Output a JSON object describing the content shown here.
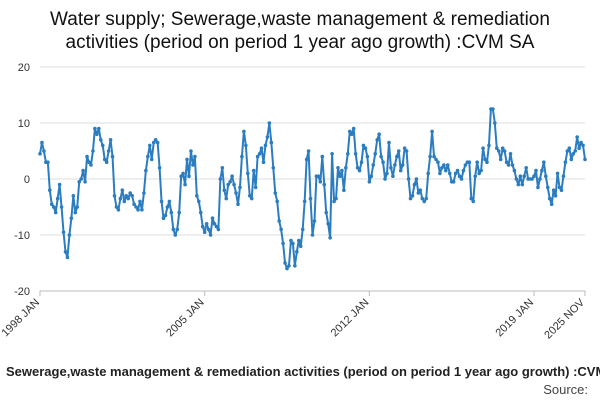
{
  "chart_data": {
    "type": "line",
    "title_lines": [
      "Water supply; Sewerage,waste management & remediation",
      "activities (period on period 1 year ago growth) :CVM SA"
    ],
    "ylim": [
      -20,
      20
    ],
    "yticks": [
      -20,
      -10,
      0,
      10,
      20
    ],
    "grid": true,
    "xticks": [
      "1998 JAN",
      "2005 JAN",
      "2012 JAN",
      "2019 JAN",
      "2025 NOV"
    ],
    "series": [
      {
        "name": "Sewerage,waste management & remediation activities (period on period 1 year ago growth) :CVM SA",
        "color": "#2b7dc0",
        "start": "1998 JAN",
        "end": "2025 NOV",
        "frequency": "monthly",
        "values": [
          4.5,
          6.5,
          5.0,
          3.0,
          3.0,
          -2.0,
          -4.5,
          -5.0,
          -6.0,
          -3.5,
          -1.0,
          -5.0,
          -9.5,
          -13.0,
          -14.0,
          -10.0,
          -7.0,
          -3.0,
          -6.0,
          -5.0,
          -0.5,
          0.0,
          1.5,
          -0.5,
          4.0,
          3.0,
          2.5,
          5.0,
          9.0,
          8.0,
          9.0,
          7.0,
          6.0,
          3.5,
          3.0,
          5.0,
          7.0,
          4.0,
          -3.0,
          -5.0,
          -5.5,
          -3.5,
          -2.0,
          -4.0,
          -3.0,
          -3.5,
          -2.5,
          -3.0,
          -4.5,
          -5.0,
          -5.5,
          -4.0,
          -5.5,
          -2.5,
          1.5,
          4.0,
          6.0,
          3.5,
          6.5,
          7.0,
          6.5,
          2.0,
          -4.0,
          -7.0,
          -6.5,
          -5.0,
          -4.0,
          -6.0,
          -9.0,
          -10.0,
          -9.0,
          -6.0,
          0.5,
          1.0,
          -1.0,
          3.5,
          0.5,
          5.0,
          2.5,
          4.0,
          -3.0,
          -4.0,
          -6.0,
          -8.5,
          -9.5,
          -8.0,
          -9.0,
          -10.0,
          -7.0,
          -8.0,
          -8.5,
          -9.0,
          0.0,
          2.0,
          -2.0,
          -3.5,
          -1.0,
          -0.5,
          0.5,
          -1.0,
          -2.5,
          -4.5,
          -1.5,
          4.0,
          8.5,
          6.0,
          1.0,
          -3.0,
          -3.5,
          1.5,
          -1.5,
          4.0,
          4.5,
          5.5,
          3.0,
          6.0,
          7.5,
          10.0,
          6.5,
          2.0,
          -2.5,
          -4.0,
          -7.5,
          -9.0,
          -11.5,
          -15.0,
          -16.0,
          -15.5,
          -11.0,
          -11.5,
          -15.5,
          -13.0,
          -11.0,
          -12.0,
          -9.0,
          -4.0,
          3.5,
          5.0,
          -3.5,
          -10.0,
          -7.5,
          0.5,
          0.5,
          -0.5,
          4.0,
          -1.0,
          -6.0,
          -8.0,
          -10.5,
          4.5,
          -4.0,
          -3.5,
          2.0,
          0.5,
          1.5,
          -2.0,
          2.0,
          4.5,
          8.5,
          8.0,
          9.0,
          4.5,
          2.0,
          1.5,
          3.0,
          6.0,
          5.5,
          4.0,
          -0.5,
          0.5,
          2.5,
          4.5,
          7.0,
          8.0,
          4.0,
          3.0,
          0.0,
          1.0,
          6.5,
          2.0,
          0.5,
          2.5,
          4.0,
          5.0,
          1.5,
          2.5,
          5.5,
          5.0,
          0.0,
          -3.5,
          -3.0,
          -1.0,
          0.0,
          -2.5,
          -2.0,
          -3.5,
          -4.0,
          -3.5,
          1.0,
          4.0,
          8.5,
          4.0,
          3.5,
          3.0,
          1.0,
          2.0,
          2.5,
          1.5,
          2.5,
          1.0,
          -0.5,
          -0.5,
          1.0,
          1.5,
          0.5,
          0.0,
          1.5,
          2.5,
          3.0,
          3.0,
          -3.5,
          -4.0,
          0.5,
          3.0,
          1.0,
          1.5,
          5.5,
          3.5,
          3.0,
          6.0,
          12.5,
          12.5,
          10.0,
          5.5,
          5.0,
          3.5,
          5.5,
          5.0,
          3.0,
          2.5,
          4.5,
          2.5,
          1.5,
          0.0,
          -1.0,
          0.5,
          -1.0,
          0.5,
          2.0,
          0.0,
          0.0,
          0.0,
          0.5,
          1.5,
          -1.5,
          0.0,
          1.5,
          3.0,
          0.5,
          -1.5,
          -3.5,
          -4.5,
          -2.0,
          -3.0,
          1.0,
          -1.5,
          -2.0,
          0.5,
          3.0,
          5.0,
          5.5,
          3.5,
          4.5,
          5.0,
          7.5,
          5.5,
          6.5,
          6.0,
          3.5
        ]
      }
    ],
    "xlabel_caption": "Sewerage,waste management & remediation activities (period on period 1 year ago growth) :CVM SA",
    "source_label": "Source:"
  }
}
